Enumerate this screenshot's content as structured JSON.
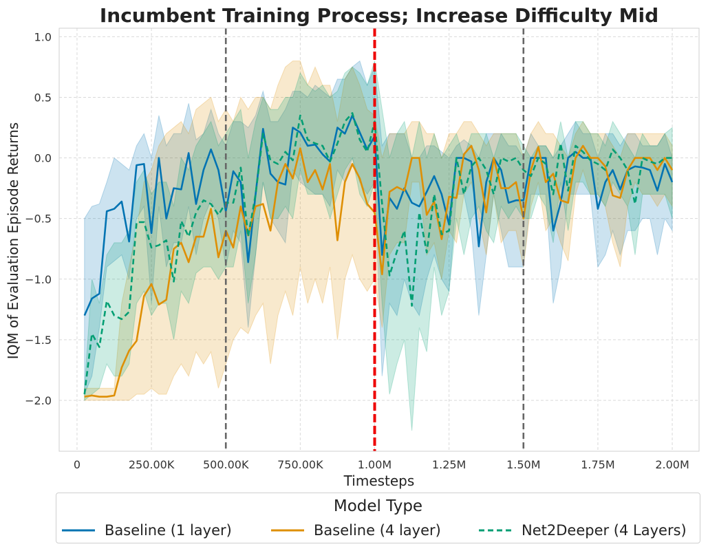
{
  "chart_data": {
    "type": "line",
    "title": "Incumbent Training Process; Increase Difficulty Mid",
    "xlabel": "Timesteps",
    "ylabel": "IQM of Evaluation Episode Returns",
    "xlim": [
      -60000,
      2090000
    ],
    "ylim": [
      -2.42,
      1.07
    ],
    "x_ticks": [
      0,
      250000,
      500000,
      750000,
      1000000,
      1250000,
      1500000,
      1750000,
      2000000
    ],
    "x_tick_labels": [
      "0",
      "250.00K",
      "500.00K",
      "750.00K",
      "1.00M",
      "1.25M",
      "1.50M",
      "1.75M",
      "2.00M"
    ],
    "y_ticks": [
      -2.0,
      -1.5,
      -1.0,
      -0.5,
      0.0,
      0.5,
      1.0
    ],
    "y_tick_labels": [
      "−2.0",
      "−1.5",
      "−1.0",
      "−0.5",
      "0.0",
      "0.5",
      "1.0"
    ],
    "grid": true,
    "vlines": [
      {
        "x": 500000,
        "color": "#666666",
        "style": "dashed"
      },
      {
        "x": 1000000,
        "color": "#ee0000",
        "style": "dashed"
      },
      {
        "x": 1500000,
        "color": "#666666",
        "style": "dashed"
      }
    ],
    "legend": {
      "title": "Model Type",
      "position": "bottom"
    },
    "series": [
      {
        "name": "Baseline (1 layer)",
        "color": "#0173b2",
        "dash": "solid",
        "x": [
          25000,
          50000,
          75000,
          100000,
          125000,
          150000,
          175000,
          200000,
          225000,
          250000,
          275000,
          300000,
          325000,
          350000,
          375000,
          400000,
          425000,
          450000,
          475000,
          500000,
          525000,
          550000,
          575000,
          600000,
          625000,
          650000,
          675000,
          700000,
          725000,
          750000,
          775000,
          800000,
          825000,
          850000,
          875000,
          900000,
          925000,
          950000,
          975000,
          1000000,
          1025000,
          1050000,
          1075000,
          1100000,
          1125000,
          1150000,
          1175000,
          1200000,
          1225000,
          1250000,
          1275000,
          1300000,
          1325000,
          1350000,
          1375000,
          1400000,
          1425000,
          1450000,
          1475000,
          1500000,
          1525000,
          1550000,
          1575000,
          1600000,
          1625000,
          1650000,
          1675000,
          1700000,
          1725000,
          1750000,
          1775000,
          1800000,
          1825000,
          1850000,
          1875000,
          1900000,
          1925000,
          1950000,
          1975000,
          2000000
        ],
        "values": [
          -1.3,
          -1.16,
          -1.12,
          -0.44,
          -0.42,
          -0.36,
          -0.69,
          -0.06,
          -0.05,
          -0.62,
          0.0,
          -0.5,
          -0.25,
          -0.26,
          0.04,
          -0.38,
          -0.1,
          0.07,
          -0.1,
          -0.44,
          -0.11,
          -0.2,
          -0.86,
          -0.3,
          0.24,
          -0.13,
          -0.2,
          -0.22,
          0.25,
          0.21,
          0.1,
          0.11,
          0.03,
          -0.03,
          0.25,
          0.2,
          0.35,
          0.21,
          0.07,
          0.18,
          -0.8,
          -0.33,
          -0.42,
          -0.25,
          -0.37,
          -0.4,
          -0.28,
          -0.15,
          -0.3,
          -0.55,
          0.0,
          0.0,
          -0.03,
          -0.73,
          -0.2,
          0.0,
          -0.1,
          -0.37,
          -0.35,
          -0.35,
          0.0,
          0.0,
          0.0,
          -0.6,
          -0.37,
          0.0,
          0.05,
          0.0,
          0.0,
          -0.42,
          -0.2,
          -0.1,
          -0.26,
          -0.1,
          -0.07,
          -0.08,
          -0.1,
          -0.27,
          -0.05,
          -0.2
        ],
        "band_upper": [
          -0.5,
          -0.4,
          -0.38,
          -0.2,
          0.0,
          -0.05,
          -0.1,
          0.1,
          0.2,
          0.0,
          0.35,
          0.1,
          0.2,
          0.2,
          0.45,
          0.15,
          0.2,
          0.4,
          0.2,
          0.1,
          0.3,
          0.3,
          0.25,
          0.35,
          0.55,
          0.3,
          0.3,
          0.4,
          0.55,
          0.55,
          0.5,
          0.6,
          0.55,
          0.5,
          0.65,
          0.65,
          0.75,
          0.8,
          0.6,
          0.75,
          0.1,
          0.2,
          0.2,
          0.2,
          0.0,
          0.0,
          0.1,
          0.1,
          0.05,
          0.0,
          0.1,
          0.15,
          0.1,
          0.0,
          0.2,
          0.2,
          0.2,
          0.1,
          0.1,
          0.0,
          0.2,
          0.1,
          0.1,
          0.0,
          0.1,
          0.2,
          0.3,
          0.2,
          0.2,
          0.0,
          0.2,
          0.2,
          0.1,
          0.2,
          0.2,
          0.1,
          0.1,
          0.1,
          0.2,
          0.0
        ],
        "band_lower": [
          -1.95,
          -1.8,
          -1.4,
          -0.9,
          -0.85,
          -0.8,
          -1.0,
          -0.5,
          -0.4,
          -1.2,
          -0.4,
          -0.9,
          -0.7,
          -0.7,
          -0.4,
          -0.8,
          -0.5,
          -0.35,
          -0.5,
          -0.9,
          -0.6,
          -0.7,
          -1.4,
          -0.8,
          -0.2,
          -0.5,
          -0.6,
          -0.7,
          -0.1,
          -0.2,
          -0.25,
          -0.3,
          -0.3,
          -0.4,
          -0.1,
          -0.2,
          0.0,
          -0.2,
          -0.3,
          -0.2,
          -1.8,
          -1.2,
          -1.3,
          -1.0,
          -1.2,
          -1.3,
          -1.0,
          -0.8,
          -1.0,
          -1.1,
          -0.3,
          -0.3,
          -0.6,
          -1.3,
          -0.8,
          -0.3,
          -0.6,
          -0.9,
          -0.9,
          -0.9,
          -0.3,
          -0.3,
          -0.3,
          -1.2,
          -0.9,
          -0.3,
          -0.3,
          -0.3,
          -0.3,
          -0.9,
          -0.8,
          -0.6,
          -0.8,
          -0.6,
          -0.6,
          -0.5,
          -0.5,
          -0.8,
          -0.5,
          -0.6
        ]
      },
      {
        "name": "Baseline (4 layer)",
        "color": "#de8f05",
        "dash": "solid",
        "x": [
          25000,
          50000,
          75000,
          100000,
          125000,
          150000,
          175000,
          200000,
          225000,
          250000,
          275000,
          300000,
          325000,
          350000,
          375000,
          400000,
          425000,
          450000,
          475000,
          500000,
          525000,
          550000,
          575000,
          600000,
          625000,
          650000,
          675000,
          700000,
          725000,
          750000,
          775000,
          800000,
          825000,
          850000,
          875000,
          900000,
          925000,
          950000,
          975000,
          1000000,
          1025000,
          1050000,
          1075000,
          1100000,
          1125000,
          1150000,
          1175000,
          1200000,
          1225000,
          1250000,
          1275000,
          1300000,
          1325000,
          1350000,
          1375000,
          1400000,
          1425000,
          1450000,
          1475000,
          1500000,
          1525000,
          1550000,
          1575000,
          1600000,
          1625000,
          1650000,
          1675000,
          1700000,
          1725000,
          1750000,
          1775000,
          1800000,
          1825000,
          1850000,
          1875000,
          1900000,
          1925000,
          1950000,
          1975000,
          2000000
        ],
        "values": [
          -1.97,
          -1.96,
          -1.97,
          -1.97,
          -1.96,
          -1.73,
          -1.59,
          -1.51,
          -1.14,
          -1.04,
          -1.21,
          -1.17,
          -0.75,
          -0.7,
          -0.86,
          -0.65,
          -0.65,
          -0.42,
          -0.82,
          -0.6,
          -0.74,
          -0.4,
          -0.64,
          -0.4,
          -0.38,
          -0.6,
          -0.2,
          -0.05,
          -0.17,
          0.08,
          -0.2,
          -0.1,
          -0.26,
          -0.05,
          -0.68,
          -0.2,
          -0.05,
          -0.17,
          -0.38,
          -0.45,
          -0.96,
          -0.28,
          -0.24,
          -0.27,
          0.0,
          0.0,
          -0.47,
          -0.36,
          -0.67,
          -0.32,
          -0.33,
          0.03,
          0.1,
          -0.1,
          -0.45,
          0.0,
          -0.25,
          -0.25,
          -0.2,
          -0.5,
          -0.1,
          0.09,
          -0.2,
          -0.13,
          -0.35,
          -0.37,
          0.0,
          0.1,
          0.0,
          0.0,
          -0.07,
          -0.31,
          -0.33,
          -0.1,
          0.0,
          0.0,
          0.0,
          -0.1,
          0.0,
          -0.1
        ],
        "band_upper": [
          -1.9,
          -1.9,
          -1.9,
          -1.9,
          -1.9,
          -1.2,
          -0.9,
          -0.6,
          -0.2,
          -0.1,
          0.1,
          0.2,
          0.25,
          0.3,
          0.2,
          0.4,
          0.45,
          0.5,
          0.3,
          0.4,
          0.3,
          0.5,
          0.4,
          0.5,
          0.5,
          0.4,
          0.6,
          0.75,
          0.8,
          0.8,
          0.6,
          0.75,
          0.6,
          0.6,
          0.3,
          0.65,
          0.75,
          0.6,
          0.4,
          0.35,
          0.0,
          0.2,
          0.2,
          0.2,
          0.3,
          0.3,
          0.2,
          0.2,
          0.0,
          0.2,
          0.2,
          0.3,
          0.3,
          0.2,
          0.1,
          0.2,
          0.2,
          0.2,
          0.2,
          0.0,
          0.2,
          0.3,
          0.2,
          0.2,
          0.1,
          0.0,
          0.2,
          0.3,
          0.2,
          0.2,
          0.2,
          0.1,
          0.0,
          0.2,
          0.2,
          0.2,
          0.2,
          0.2,
          0.2,
          0.1
        ],
        "band_lower": [
          -2.0,
          -2.0,
          -2.0,
          -2.0,
          -2.0,
          -2.0,
          -2.0,
          -1.95,
          -1.95,
          -1.9,
          -1.95,
          -1.95,
          -1.8,
          -1.7,
          -1.8,
          -1.6,
          -1.7,
          -1.6,
          -1.9,
          -1.7,
          -1.5,
          -1.4,
          -1.45,
          -1.3,
          -1.2,
          -1.7,
          -1.3,
          -1.1,
          -1.3,
          -0.9,
          -1.2,
          -1.0,
          -1.2,
          -0.9,
          -1.5,
          -1.0,
          -0.8,
          -1.0,
          -1.1,
          -1.0,
          -1.4,
          -0.8,
          -0.7,
          -0.7,
          -0.2,
          -0.2,
          -0.8,
          -0.7,
          -1.0,
          -0.6,
          -0.7,
          -0.3,
          -0.2,
          -0.5,
          -0.8,
          -0.3,
          -0.7,
          -0.6,
          -0.6,
          -0.9,
          -0.4,
          -0.2,
          -0.6,
          -0.5,
          -0.7,
          -0.85,
          -0.3,
          -0.1,
          -0.3,
          -0.3,
          -0.4,
          -0.7,
          -0.9,
          -0.4,
          -0.2,
          -0.3,
          -0.3,
          -0.4,
          -0.3,
          -0.4
        ]
      },
      {
        "name": "Net2Deeper (4 Layers)",
        "color": "#029e73",
        "dash": "dashed",
        "x": [
          25000,
          50000,
          75000,
          100000,
          125000,
          150000,
          175000,
          200000,
          225000,
          250000,
          275000,
          300000,
          325000,
          350000,
          375000,
          400000,
          425000,
          450000,
          475000,
          500000,
          525000,
          550000,
          575000,
          600000,
          625000,
          650000,
          675000,
          700000,
          725000,
          750000,
          775000,
          800000,
          825000,
          850000,
          875000,
          900000,
          925000,
          950000,
          975000,
          1000000,
          1025000,
          1050000,
          1075000,
          1100000,
          1125000,
          1150000,
          1175000,
          1200000,
          1225000,
          1250000,
          1275000,
          1300000,
          1325000,
          1350000,
          1375000,
          1400000,
          1425000,
          1450000,
          1475000,
          1500000,
          1525000,
          1550000,
          1575000,
          1600000,
          1625000,
          1650000,
          1675000,
          1700000,
          1725000,
          1750000,
          1775000,
          1800000,
          1825000,
          1850000,
          1875000,
          1900000,
          1925000,
          1950000,
          1975000,
          2000000
        ],
        "values": [
          -1.95,
          -1.45,
          -1.56,
          -1.18,
          -1.3,
          -1.33,
          -1.27,
          -0.53,
          -0.53,
          -0.74,
          -0.72,
          -0.68,
          -1.02,
          -0.52,
          -0.65,
          -0.45,
          -0.35,
          -0.38,
          -0.47,
          -0.37,
          -0.37,
          -0.08,
          -0.65,
          -0.3,
          0.2,
          -0.02,
          -0.05,
          0.05,
          -0.02,
          0.35,
          0.15,
          0.12,
          0.1,
          -0.03,
          0.12,
          0.3,
          0.37,
          0.15,
          0.05,
          0.3,
          -0.38,
          -0.97,
          -0.77,
          -0.6,
          -1.22,
          -0.45,
          -0.78,
          -0.3,
          -0.63,
          -0.6,
          0.0,
          -0.3,
          -0.07,
          0.0,
          -0.1,
          -0.3,
          0.0,
          -0.03,
          0.0,
          -0.1,
          -0.15,
          0.0,
          -0.05,
          -0.3,
          0.12,
          -0.27,
          0.1,
          0.05,
          -0.02,
          -0.05,
          -0.1,
          0.07,
          0.0,
          -0.1,
          -0.38,
          0.0,
          -0.03,
          -0.05,
          0.0,
          0.0
        ],
        "band_upper": [
          -1.9,
          -1.0,
          -1.2,
          -0.8,
          -0.7,
          -0.7,
          -0.6,
          -0.2,
          -0.1,
          -0.3,
          -0.2,
          -0.2,
          -0.4,
          0.0,
          -0.1,
          0.1,
          0.2,
          0.3,
          0.1,
          0.2,
          0.3,
          0.4,
          0.0,
          0.3,
          0.5,
          0.4,
          0.4,
          0.5,
          0.5,
          0.7,
          0.6,
          0.55,
          0.6,
          0.5,
          0.55,
          0.7,
          0.75,
          0.7,
          0.6,
          0.8,
          0.4,
          0.0,
          0.2,
          0.3,
          0.0,
          0.3,
          0.0,
          0.2,
          0.0,
          0.1,
          0.2,
          0.0,
          0.2,
          0.2,
          0.2,
          0.0,
          0.2,
          0.2,
          0.2,
          0.1,
          0.0,
          0.1,
          0.1,
          0.0,
          0.3,
          0.0,
          0.3,
          0.3,
          0.2,
          0.2,
          0.1,
          0.3,
          0.2,
          0.1,
          0.0,
          0.2,
          0.1,
          0.1,
          0.2,
          0.25
        ],
        "band_lower": [
          -2.0,
          -1.95,
          -1.9,
          -1.7,
          -1.8,
          -1.8,
          -1.7,
          -1.2,
          -1.1,
          -1.3,
          -1.2,
          -1.2,
          -1.5,
          -1.1,
          -1.2,
          -0.95,
          -0.9,
          -0.9,
          -1.0,
          -0.9,
          -0.9,
          -0.6,
          -1.2,
          -0.8,
          -0.2,
          -0.5,
          -0.5,
          -0.4,
          -0.5,
          -0.1,
          -0.3,
          -0.3,
          -0.3,
          -0.5,
          -0.3,
          -0.1,
          0.0,
          -0.3,
          -0.4,
          -0.2,
          -1.2,
          -1.95,
          -1.7,
          -1.5,
          -2.25,
          -1.4,
          -1.6,
          -0.9,
          -1.3,
          -1.1,
          -0.5,
          -0.8,
          -0.5,
          -0.4,
          -0.6,
          -0.7,
          -0.4,
          -0.5,
          -0.4,
          -0.5,
          -0.5,
          -0.3,
          -0.4,
          -0.7,
          -0.2,
          -0.6,
          -0.2,
          -0.2,
          -0.3,
          -0.3,
          -0.4,
          -0.2,
          -0.3,
          -0.4,
          -0.8,
          -0.3,
          -0.3,
          -0.3,
          -0.3,
          -0.5
        ]
      }
    ]
  }
}
